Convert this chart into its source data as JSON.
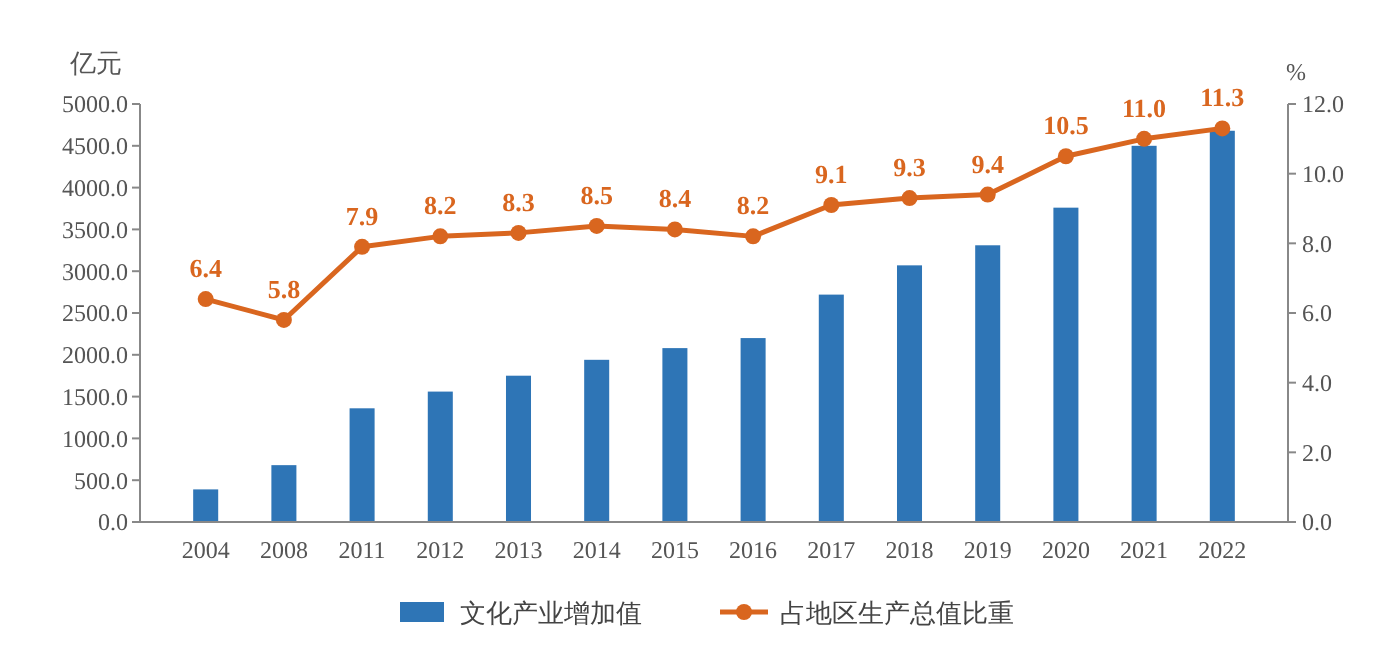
{
  "chart_data": {
    "type": "bar",
    "ylabel": "亿元",
    "y2label": "%",
    "categories": [
      "2004",
      "2008",
      "2011",
      "2012",
      "2013",
      "2014",
      "2015",
      "2016",
      "2017",
      "2018",
      "2019",
      "2020",
      "2021",
      "2022"
    ],
    "series": [
      {
        "name": "文化产业增加值",
        "color": "#2e75b6",
        "values": [
          390,
          680,
          1360,
          1560,
          1750,
          1940,
          2080,
          2200,
          2720,
          3070,
          3310,
          3760,
          4500,
          4680
        ]
      },
      {
        "name": "占地区生产总值比重",
        "type": "line",
        "axis": "y2",
        "color": "#d9661f",
        "marker": "circle",
        "data_labels": true,
        "values": [
          6.4,
          5.8,
          7.9,
          8.2,
          8.3,
          8.5,
          8.4,
          8.2,
          9.1,
          9.3,
          9.4,
          10.5,
          11.0,
          11.3
        ],
        "value_labels": [
          "6.4",
          "5.8",
          "7.9",
          "8.2",
          "8.3",
          "8.5",
          "8.4",
          "8.2",
          "9.1",
          "9.3",
          "9.4",
          "10.5",
          "11.0",
          "11.3"
        ]
      }
    ],
    "ylim": [
      0,
      5000
    ],
    "yticks": [
      {
        "value": 0,
        "label": "0.0"
      },
      {
        "value": 500,
        "label": "500.0"
      },
      {
        "value": 1000,
        "label": "1000.0"
      },
      {
        "value": 1500,
        "label": "1500.0"
      },
      {
        "value": 2000,
        "label": "2000.0"
      },
      {
        "value": 2500,
        "label": "2500.0"
      },
      {
        "value": 3000,
        "label": "3000.0"
      },
      {
        "value": 3500,
        "label": "3500.0"
      },
      {
        "value": 4000,
        "label": "4000.0"
      },
      {
        "value": 4500,
        "label": "4500.0"
      },
      {
        "value": 5000,
        "label": "5000.0"
      }
    ],
    "y2lim": [
      0,
      12
    ],
    "y2ticks": [
      {
        "value": 0,
        "label": "0.0"
      },
      {
        "value": 2,
        "label": "2.0"
      },
      {
        "value": 4,
        "label": "4.0"
      },
      {
        "value": 6,
        "label": "6.0"
      },
      {
        "value": 8,
        "label": "8.0"
      },
      {
        "value": 10,
        "label": "10.0"
      },
      {
        "value": 12,
        "label": "12.0"
      }
    ],
    "grid": false,
    "legend": "bottom"
  }
}
